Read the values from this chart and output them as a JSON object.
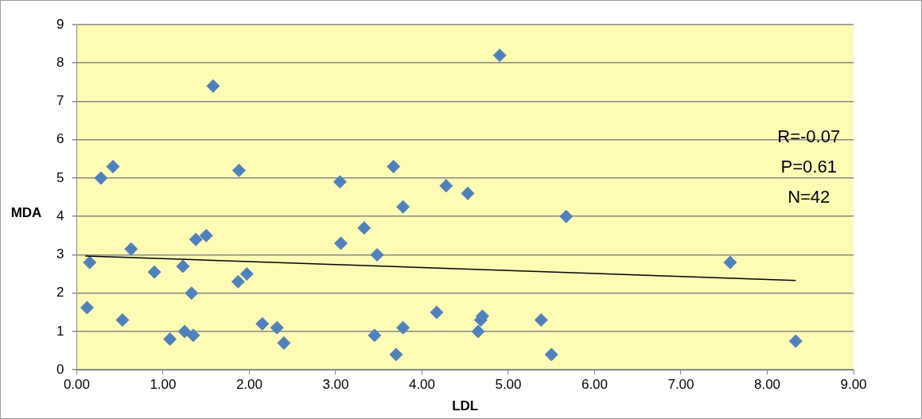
{
  "chart_data": {
    "type": "scatter",
    "xlabel": "LDL",
    "ylabel": "MDA",
    "series": [
      {
        "color": "#4f81bd",
        "x": [
          0.12,
          0.15,
          0.28,
          0.42,
          0.53,
          0.63,
          0.9,
          1.08,
          1.23,
          1.25,
          1.33,
          1.35,
          1.38,
          1.5,
          1.58,
          1.87,
          1.88,
          1.97,
          2.15,
          2.32,
          2.4,
          3.05,
          3.06,
          3.33,
          3.45,
          3.48,
          3.67,
          3.7,
          3.78,
          3.78,
          4.17,
          4.28,
          4.53,
          4.65,
          4.68,
          4.7,
          4.9,
          5.38,
          5.5,
          5.67,
          7.57,
          8.33
        ],
        "values": [
          1.62,
          2.8,
          5.0,
          5.3,
          1.3,
          3.15,
          2.55,
          0.8,
          2.7,
          1.0,
          2.0,
          0.9,
          3.4,
          3.5,
          7.4,
          2.3,
          5.2,
          2.5,
          1.2,
          1.1,
          0.7,
          4.9,
          3.3,
          3.7,
          0.9,
          3.0,
          5.3,
          0.4,
          1.1,
          4.25,
          1.5,
          4.8,
          4.6,
          1.0,
          1.3,
          1.4,
          8.2,
          1.3,
          0.4,
          4.0,
          2.8,
          0.75
        ],
        "marker": "diamond"
      },
      {
        "type": "line",
        "color": "#000000",
        "x": [
          0.1,
          8.33
        ],
        "values": [
          2.97,
          2.33
        ],
        "marker": "none",
        "line_style": "solid"
      }
    ],
    "xlim": [
      0,
      9
    ],
    "xticks": [
      {
        "value": 0,
        "label": "0.00"
      },
      {
        "value": 1,
        "label": "1.00"
      },
      {
        "value": 2,
        "label": "2.00"
      },
      {
        "value": 3,
        "label": "3.00"
      },
      {
        "value": 4,
        "label": "4.00"
      },
      {
        "value": 5,
        "label": "5.00"
      },
      {
        "value": 6,
        "label": "6.00"
      },
      {
        "value": 7,
        "label": "7.00"
      },
      {
        "value": 8,
        "label": "8.00"
      },
      {
        "value": 9,
        "label": "9.00"
      }
    ],
    "ylim": [
      0,
      9
    ],
    "yticks": [
      0,
      1,
      2,
      3,
      4,
      5,
      6,
      7,
      8,
      9
    ],
    "grid": "y",
    "legend": false,
    "annotations": [
      "R=-0.07",
      "P=0.61",
      "N=42"
    ]
  }
}
